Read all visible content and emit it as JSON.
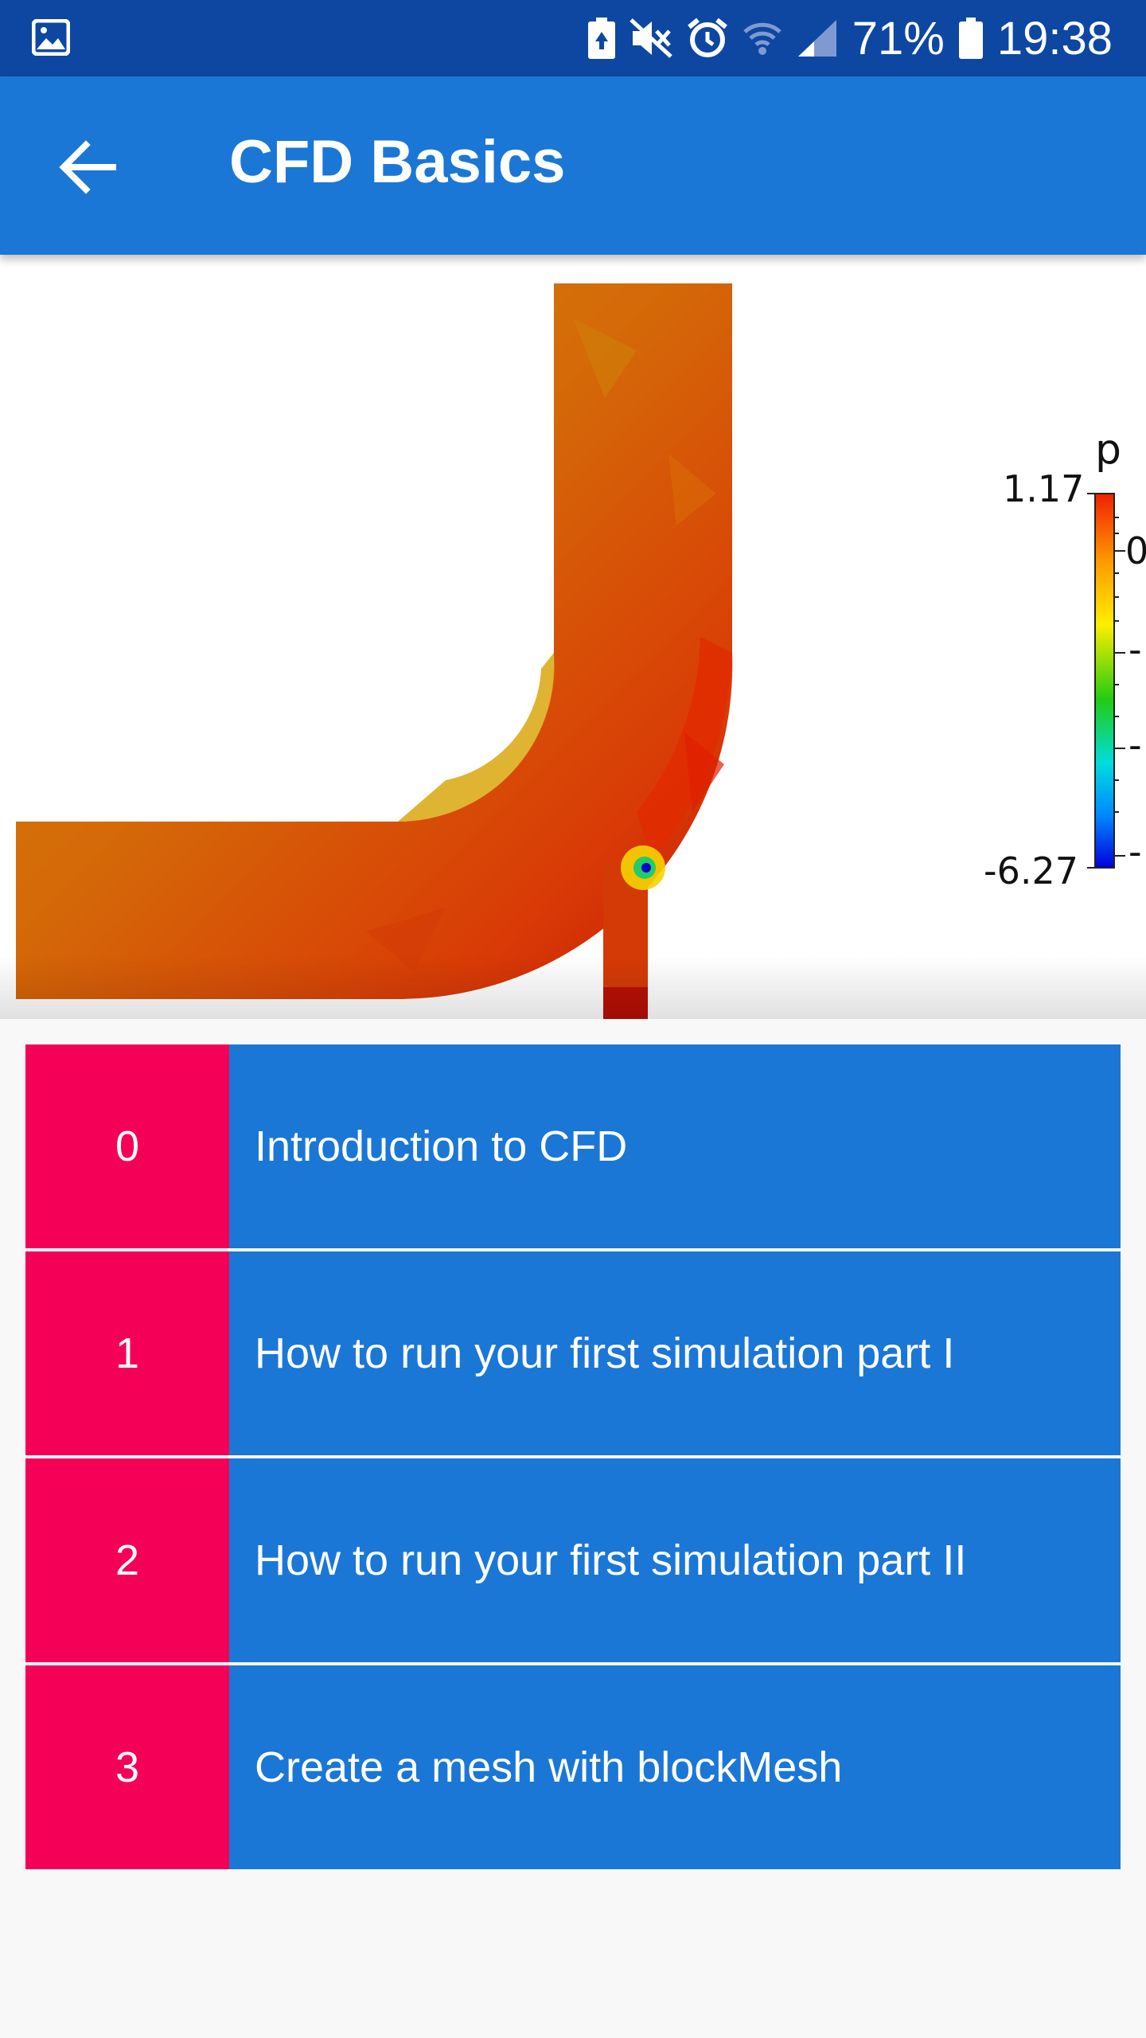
{
  "status_bar": {
    "battery_percent": "71%",
    "time": "19:38",
    "icons": [
      "gallery-icon",
      "battery-saver-icon",
      "mute-icon",
      "alarm-icon",
      "wifi-icon",
      "signal-icon",
      "battery-icon"
    ]
  },
  "app_bar": {
    "title": "CFD Basics",
    "back_icon": "arrow-back-icon"
  },
  "hero": {
    "legend_title": "p",
    "legend_max": "1.17",
    "legend_min": "-6.27",
    "legend_tick_stubs": [
      "0",
      "-",
      "-",
      "-"
    ]
  },
  "lessons": [
    {
      "number": "0",
      "title": "Introduction to CFD"
    },
    {
      "number": "1",
      "title": "How to run your first simulation part I"
    },
    {
      "number": "2",
      "title": "How to run your first simulation part II"
    },
    {
      "number": "3",
      "title": "Create a mesh with blockMesh"
    }
  ],
  "colors": {
    "status_bar": "#0d47a1",
    "app_bar": "#1b77d6",
    "number_cell": "#f50057",
    "lesson_cell": "#1b77d6"
  }
}
